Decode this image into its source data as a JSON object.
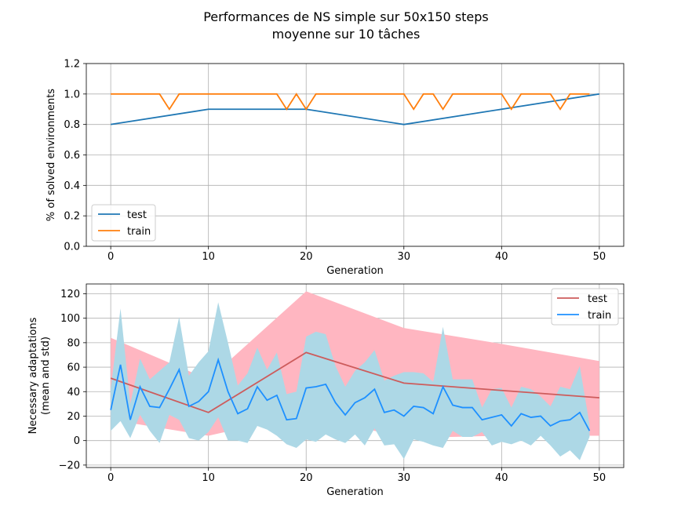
{
  "figure": {
    "title_line1": "Performances de NS simple sur 50x150 steps",
    "title_line2": "moyenne sur 10 tâches"
  },
  "chart_data": [
    {
      "type": "line",
      "xlabel": "Generation",
      "ylabel": "% of solved environments",
      "xlim": [
        -2.5,
        52.5
      ],
      "ylim": [
        0.0,
        1.2
      ],
      "xticks": [
        0,
        10,
        20,
        30,
        40,
        50
      ],
      "yticks": [
        0.0,
        0.2,
        0.4,
        0.6,
        0.8,
        1.0,
        1.2
      ],
      "xtick_labels": [
        "0",
        "10",
        "20",
        "30",
        "40",
        "50"
      ],
      "ytick_labels": [
        "0.0",
        "0.2",
        "0.4",
        "0.6",
        "0.8",
        "1.0",
        "1.2"
      ],
      "grid": true,
      "legend_position": "lower-left",
      "series": [
        {
          "name": "test",
          "color": "#1f77b4",
          "x": [
            0,
            10,
            20,
            30,
            40,
            50
          ],
          "y": [
            0.8,
            0.9,
            0.9,
            0.8,
            0.9,
            1.0
          ]
        },
        {
          "name": "train",
          "color": "#ff7f0e",
          "x": [
            0,
            1,
            2,
            3,
            4,
            5,
            6,
            7,
            8,
            9,
            10,
            11,
            12,
            13,
            14,
            15,
            16,
            17,
            18,
            19,
            20,
            21,
            22,
            23,
            24,
            25,
            26,
            27,
            28,
            29,
            30,
            31,
            32,
            33,
            34,
            35,
            36,
            37,
            38,
            39,
            40,
            41,
            42,
            43,
            44,
            45,
            46,
            47,
            48,
            49
          ],
          "y": [
            1.0,
            1.0,
            1.0,
            1.0,
            1.0,
            1.0,
            0.9,
            1.0,
            1.0,
            1.0,
            1.0,
            1.0,
            1.0,
            1.0,
            1.0,
            1.0,
            1.0,
            1.0,
            0.9,
            1.0,
            0.9,
            1.0,
            1.0,
            1.0,
            1.0,
            1.0,
            1.0,
            1.0,
            1.0,
            1.0,
            1.0,
            0.9,
            1.0,
            1.0,
            0.9,
            1.0,
            1.0,
            1.0,
            1.0,
            1.0,
            1.0,
            0.9,
            1.0,
            1.0,
            1.0,
            1.0,
            0.9,
            1.0,
            1.0,
            1.0
          ]
        }
      ]
    },
    {
      "type": "line",
      "xlabel": "Generation",
      "ylabel_line1": "Necessary adaptations",
      "ylabel_line2": "(mean and std)",
      "xlim": [
        -2.5,
        52.5
      ],
      "ylim": [
        -22,
        128
      ],
      "xticks": [
        0,
        10,
        20,
        30,
        40,
        50
      ],
      "yticks": [
        -20,
        0,
        20,
        40,
        60,
        80,
        100,
        120
      ],
      "xtick_labels": [
        "0",
        "10",
        "20",
        "30",
        "40",
        "50"
      ],
      "ytick_labels": [
        "−20",
        "0",
        "20",
        "40",
        "60",
        "80",
        "100",
        "120"
      ],
      "grid": true,
      "legend_position": "upper-right",
      "series": [
        {
          "name": "test",
          "color": "#cd5c5c",
          "band_color": "#ffb6c1",
          "x": [
            0,
            10,
            20,
            30,
            40,
            50
          ],
          "mean": [
            51,
            23,
            72,
            47,
            41,
            35
          ],
          "upper": [
            84,
            50,
            122,
            92,
            79,
            65
          ],
          "lower": [
            17,
            4,
            22,
            2,
            4,
            4
          ]
        },
        {
          "name": "train",
          "color": "#1e90ff",
          "band_color": "#add8e6",
          "x": [
            0,
            1,
            2,
            3,
            4,
            5,
            6,
            7,
            8,
            9,
            10,
            11,
            12,
            13,
            14,
            15,
            16,
            17,
            18,
            19,
            20,
            21,
            22,
            23,
            24,
            25,
            26,
            27,
            28,
            29,
            30,
            31,
            32,
            33,
            34,
            35,
            36,
            37,
            38,
            39,
            40,
            41,
            42,
            43,
            44,
            45,
            46,
            47,
            48,
            49
          ],
          "mean": [
            25,
            62,
            17,
            44,
            28,
            27,
            42,
            58,
            28,
            32,
            40,
            66,
            40,
            22,
            26,
            44,
            33,
            37,
            17,
            18,
            43,
            44,
            46,
            31,
            21,
            31,
            35,
            42,
            23,
            25,
            20,
            28,
            27,
            22,
            44,
            29,
            27,
            27,
            17,
            19,
            21,
            12,
            22,
            19,
            20,
            12,
            16,
            17,
            23,
            8
          ],
          "upper": [
            42,
            108,
            30,
            67,
            50,
            57,
            64,
            101,
            53,
            64,
            73,
            113,
            80,
            45,
            55,
            76,
            58,
            72,
            38,
            40,
            85,
            89,
            87,
            61,
            44,
            57,
            64,
            74,
            49,
            53,
            56,
            56,
            55,
            48,
            93,
            50,
            50,
            50,
            27,
            42,
            43,
            27,
            44,
            42,
            36,
            28,
            44,
            42,
            61,
            13
          ],
          "lower": [
            8,
            16,
            2,
            21,
            8,
            -2,
            21,
            17,
            2,
            0,
            7,
            19,
            0,
            0,
            -2,
            12,
            9,
            4,
            -3,
            -6,
            1,
            -1,
            5,
            1,
            -2,
            5,
            -4,
            10,
            -4,
            -3,
            -15,
            1,
            -1,
            -4,
            -6,
            8,
            3,
            3,
            7,
            -4,
            -1,
            -3,
            0,
            -4,
            4,
            -4,
            -13,
            -8,
            -16,
            3
          ]
        }
      ]
    }
  ]
}
